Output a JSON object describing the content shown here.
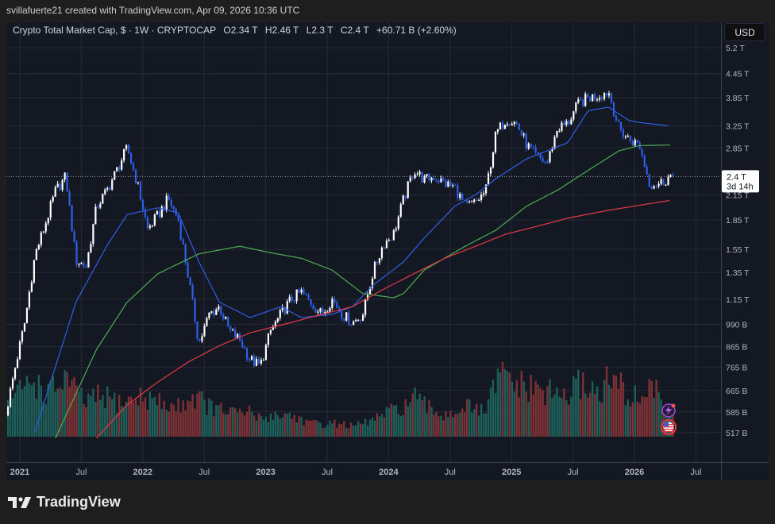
{
  "header": {
    "author_line": "svillafuerte21 created with TradingView.com, Apr 09, 2026 10:36 UTC"
  },
  "legend": {
    "symbol": "Crypto Total Market Cap, $ · 1W · CRYPTOCAP",
    "open": "O2.34 T",
    "high": "H2.46 T",
    "low": "L2.3 T",
    "close": "C2.4 T",
    "change": "+60.71 B (+2.60%)"
  },
  "currency_button": "USD",
  "last_price": {
    "label": "2.4 T",
    "countdown": "3d 14h",
    "value": 2.4
  },
  "brand": "TradingView",
  "colors": {
    "background": "#141823",
    "up_candle": "#ffffff",
    "down_candle": "#2f5fe8",
    "volume_up": "#1f5f59",
    "volume_down": "#7e3236",
    "ma_blue": "#2f5fe8",
    "ma_green": "#4caf50",
    "ma_red": "#e53945"
  },
  "icons": [
    "lightning-event-icon",
    "us-flag-event-icon"
  ],
  "chart_data": {
    "type": "candlestick",
    "title": "Crypto Total Market Cap",
    "interval": "1W",
    "y_scale": "log",
    "y_unit": "T (USD)",
    "grid": true,
    "price_ticks": [
      {
        "label": "5.2 T",
        "value": 5.2
      },
      {
        "label": "4.45 T",
        "value": 4.45
      },
      {
        "label": "3.85 T",
        "value": 3.85
      },
      {
        "label": "3.25 T",
        "value": 3.25
      },
      {
        "label": "2.85 T",
        "value": 2.85
      },
      {
        "label": "2.15 T",
        "value": 2.15
      },
      {
        "label": "1.85 T",
        "value": 1.85
      },
      {
        "label": "1.55 T",
        "value": 1.55
      },
      {
        "label": "1.35 T",
        "value": 1.35
      },
      {
        "label": "1.15 T",
        "value": 1.15
      },
      {
        "label": "990 B",
        "value": 0.99
      },
      {
        "label": "865 B",
        "value": 0.865
      },
      {
        "label": "765 B",
        "value": 0.765
      },
      {
        "label": "665 B",
        "value": 0.665
      },
      {
        "label": "585 B",
        "value": 0.585
      },
      {
        "label": "517 B",
        "value": 0.517
      }
    ],
    "time_ticks": [
      {
        "label": "2021",
        "date": "2021-01-01",
        "bold": true
      },
      {
        "label": "Jul",
        "date": "2021-07-01"
      },
      {
        "label": "2022",
        "date": "2022-01-01",
        "bold": true
      },
      {
        "label": "Jul",
        "date": "2022-07-01"
      },
      {
        "label": "2023",
        "date": "2023-01-01",
        "bold": true
      },
      {
        "label": "Jul",
        "date": "2023-07-01"
      },
      {
        "label": "2024",
        "date": "2024-01-01",
        "bold": true
      },
      {
        "label": "Jul",
        "date": "2024-07-01"
      },
      {
        "label": "2025",
        "date": "2025-01-01",
        "bold": true
      },
      {
        "label": "Jul",
        "date": "2025-07-01"
      },
      {
        "label": "2026",
        "date": "2026-01-01",
        "bold": true
      },
      {
        "label": "Jul",
        "date": "2026-07-01"
      }
    ],
    "monthly_close_T": [
      [
        "2020-11",
        0.55
      ],
      [
        "2020-12",
        0.75
      ],
      [
        "2021-01",
        1.0
      ],
      [
        "2021-02",
        1.5
      ],
      [
        "2021-03",
        1.8
      ],
      [
        "2021-04",
        2.2
      ],
      [
        "2021-05",
        2.4
      ],
      [
        "2021-06",
        1.45
      ],
      [
        "2021-07",
        1.4
      ],
      [
        "2021-08",
        2.0
      ],
      [
        "2021-09",
        2.2
      ],
      [
        "2021-10",
        2.5
      ],
      [
        "2021-11",
        2.85
      ],
      [
        "2021-12",
        2.3
      ],
      [
        "2022-01",
        1.75
      ],
      [
        "2022-02",
        1.9
      ],
      [
        "2022-03",
        2.1
      ],
      [
        "2022-04",
        1.85
      ],
      [
        "2022-05",
        1.3
      ],
      [
        "2022-06",
        0.88
      ],
      [
        "2022-07",
        1.05
      ],
      [
        "2022-08",
        1.1
      ],
      [
        "2022-09",
        0.95
      ],
      [
        "2022-10",
        0.9
      ],
      [
        "2022-11",
        0.8
      ],
      [
        "2022-12",
        0.77
      ],
      [
        "2023-01",
        0.95
      ],
      [
        "2023-02",
        1.05
      ],
      [
        "2023-03",
        1.15
      ],
      [
        "2023-04",
        1.2
      ],
      [
        "2023-05",
        1.12
      ],
      [
        "2023-06",
        1.05
      ],
      [
        "2023-07",
        1.15
      ],
      [
        "2023-08",
        1.05
      ],
      [
        "2023-09",
        1.0
      ],
      [
        "2023-10",
        1.05
      ],
      [
        "2023-11",
        1.35
      ],
      [
        "2023-12",
        1.6
      ],
      [
        "2024-01",
        1.7
      ],
      [
        "2024-02",
        2.1
      ],
      [
        "2024-03",
        2.5
      ],
      [
        "2024-04",
        2.35
      ],
      [
        "2024-05",
        2.4
      ],
      [
        "2024-06",
        2.3
      ],
      [
        "2024-07",
        2.25
      ],
      [
        "2024-08",
        2.0
      ],
      [
        "2024-09",
        2.05
      ],
      [
        "2024-10",
        2.2
      ],
      [
        "2024-11",
        3.1
      ],
      [
        "2024-12",
        3.4
      ],
      [
        "2025-01",
        3.3
      ],
      [
        "2025-02",
        2.9
      ],
      [
        "2025-03",
        2.7
      ],
      [
        "2025-04",
        2.6
      ],
      [
        "2025-05",
        3.2
      ],
      [
        "2025-06",
        3.3
      ],
      [
        "2025-07",
        3.7
      ],
      [
        "2025-08",
        3.85
      ],
      [
        "2025-09",
        3.9
      ],
      [
        "2025-10",
        4.0
      ],
      [
        "2025-11",
        3.2
      ],
      [
        "2025-12",
        3.0
      ],
      [
        "2026-01",
        2.9
      ],
      [
        "2026-02",
        2.3
      ],
      [
        "2026-03",
        2.3
      ],
      [
        "2026-04",
        2.4
      ]
    ],
    "volume_relative": [
      0.35,
      0.45,
      0.6,
      0.65,
      0.5,
      0.55,
      0.7,
      0.5,
      0.4,
      0.45,
      0.45,
      0.4,
      0.4,
      0.45,
      0.45,
      0.4,
      0.35,
      0.35,
      0.45,
      0.45,
      0.35,
      0.3,
      0.3,
      0.25,
      0.3,
      0.2,
      0.25,
      0.25,
      0.25,
      0.2,
      0.15,
      0.15,
      0.15,
      0.15,
      0.12,
      0.15,
      0.2,
      0.25,
      0.3,
      0.35,
      0.45,
      0.35,
      0.3,
      0.25,
      0.3,
      0.35,
      0.3,
      0.3,
      0.65,
      0.7,
      0.6,
      0.55,
      0.55,
      0.5,
      0.5,
      0.45,
      0.6,
      0.6,
      0.5,
      0.65,
      0.6,
      0.45,
      0.45,
      0.6,
      0.45,
      0.35
    ],
    "moving_averages": [
      {
        "color": "#2f5fe8",
        "points": [
          [
            "2021-02",
            0.52
          ],
          [
            "2021-06",
            1.13
          ],
          [
            "2021-09",
            1.58
          ],
          [
            "2021-11",
            1.91
          ],
          [
            "2022-02",
            1.99
          ],
          [
            "2022-04",
            1.93
          ],
          [
            "2022-06",
            1.44
          ],
          [
            "2022-08",
            1.13
          ],
          [
            "2022-11",
            1.03
          ],
          [
            "2023-02",
            1.1
          ],
          [
            "2023-04",
            1.03
          ],
          [
            "2023-07",
            1.05
          ],
          [
            "2023-09",
            1.1
          ],
          [
            "2023-11",
            1.25
          ],
          [
            "2024-02",
            1.44
          ],
          [
            "2024-04",
            1.66
          ],
          [
            "2024-07",
            2.01
          ],
          [
            "2024-09",
            2.15
          ],
          [
            "2024-11",
            2.37
          ],
          [
            "2025-02",
            2.67
          ],
          [
            "2025-04",
            2.8
          ],
          [
            "2025-06",
            2.94
          ],
          [
            "2025-08",
            3.56
          ],
          [
            "2025-10",
            3.64
          ],
          [
            "2025-12",
            3.36
          ],
          [
            "2026-01",
            3.32
          ],
          [
            "2026-04",
            3.25
          ]
        ]
      },
      {
        "color": "#4caf50",
        "points": [
          [
            "2021-04",
            0.5
          ],
          [
            "2021-08",
            0.85
          ],
          [
            "2021-11",
            1.13
          ],
          [
            "2022-02",
            1.34
          ],
          [
            "2022-06",
            1.51
          ],
          [
            "2022-10",
            1.58
          ],
          [
            "2023-01",
            1.52
          ],
          [
            "2023-04",
            1.47
          ],
          [
            "2023-07",
            1.37
          ],
          [
            "2023-10",
            1.19
          ],
          [
            "2024-01",
            1.16
          ],
          [
            "2024-02",
            1.19
          ],
          [
            "2024-04",
            1.37
          ],
          [
            "2024-08",
            1.58
          ],
          [
            "2024-11",
            1.74
          ],
          [
            "2025-02",
            2.01
          ],
          [
            "2025-05",
            2.21
          ],
          [
            "2025-08",
            2.49
          ],
          [
            "2025-11",
            2.8
          ],
          [
            "2026-01",
            2.89
          ],
          [
            "2026-04",
            2.9
          ]
        ]
      },
      {
        "color": "#e53945",
        "points": [
          [
            "2021-08",
            0.5
          ],
          [
            "2021-11",
            0.61
          ],
          [
            "2022-02",
            0.7
          ],
          [
            "2022-05",
            0.79
          ],
          [
            "2022-08",
            0.87
          ],
          [
            "2022-11",
            0.94
          ],
          [
            "2023-03",
            1.0
          ],
          [
            "2023-06",
            1.05
          ],
          [
            "2023-09",
            1.1
          ],
          [
            "2023-12",
            1.22
          ],
          [
            "2024-03",
            1.34
          ],
          [
            "2024-06",
            1.47
          ],
          [
            "2024-09",
            1.58
          ],
          [
            "2024-12",
            1.7
          ],
          [
            "2025-03",
            1.78
          ],
          [
            "2025-06",
            1.87
          ],
          [
            "2025-10",
            1.96
          ],
          [
            "2026-01",
            2.02
          ],
          [
            "2026-04",
            2.08
          ]
        ]
      }
    ]
  }
}
